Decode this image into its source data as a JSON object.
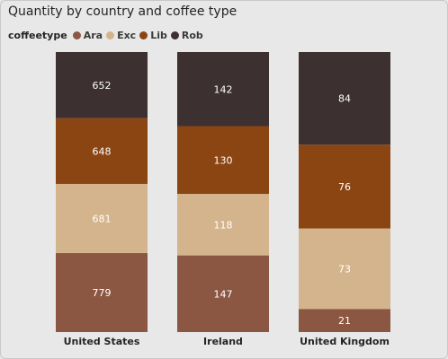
{
  "chart_data": {
    "type": "bar",
    "stacked": "100%",
    "title": "Quantity by country and coffee type",
    "legend_title": "coffeetype",
    "legend_position": "top-left",
    "categories": [
      "United States",
      "Ireland",
      "United Kingdom"
    ],
    "series": [
      {
        "name": "Ara",
        "color": "#8b5742",
        "values": [
          779,
          147,
          21
        ]
      },
      {
        "name": "Exc",
        "color": "#d4b48c",
        "values": [
          681,
          118,
          73
        ]
      },
      {
        "name": "Lib",
        "color": "#8b4513",
        "values": [
          648,
          130,
          76
        ]
      },
      {
        "name": "Rob",
        "color": "#3c3030",
        "values": [
          652,
          142,
          84
        ]
      }
    ],
    "grid": false
  }
}
